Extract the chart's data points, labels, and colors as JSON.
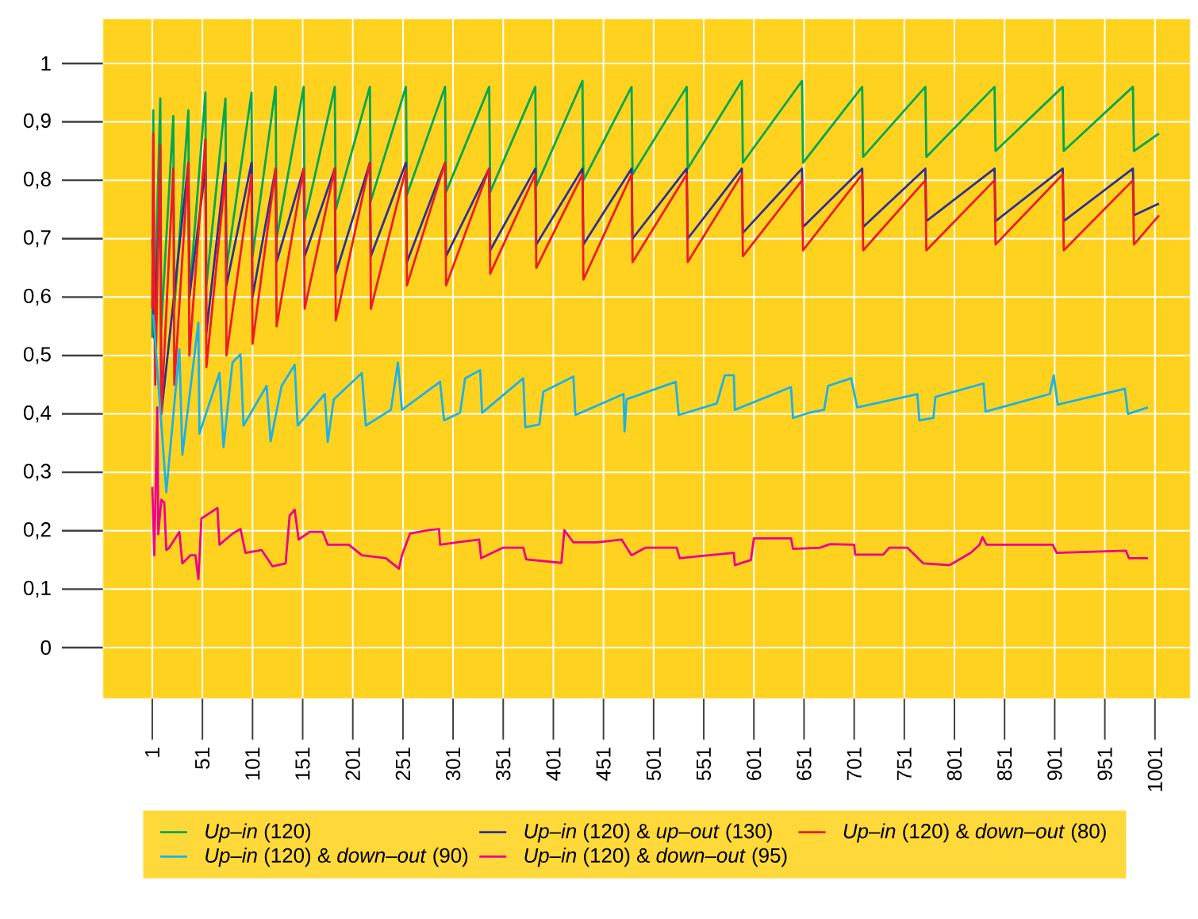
{
  "chart_data": {
    "type": "line",
    "xlim": [
      -48,
      1036
    ],
    "ylim": [
      -0.087,
      1.076
    ],
    "xticks": [
      1,
      51,
      101,
      151,
      201,
      251,
      301,
      351,
      401,
      451,
      501,
      551,
      601,
      651,
      701,
      751,
      801,
      851,
      901,
      951,
      1001
    ],
    "yticks": [
      0,
      {
        "value": 0.1,
        "label": "0,1"
      },
      {
        "value": 0.2,
        "label": "0,2"
      },
      {
        "value": 0.3,
        "label": "0,3"
      },
      {
        "value": 0.4,
        "label": "0,4"
      },
      {
        "value": 0.5,
        "label": "0,5"
      },
      {
        "value": 0.6,
        "label": "0,6"
      },
      {
        "value": 0.7,
        "label": "0,7"
      },
      {
        "value": 0.8,
        "label": "0,8"
      },
      {
        "value": 0.9,
        "label": "0,9"
      },
      1
    ],
    "grid": true,
    "legend": "bottom",
    "marker": "none",
    "line_style": "solid",
    "series": [
      {
        "name": "*Up–in* (120)",
        "color": "#00a850",
        "x": [
          1,
          2,
          3,
          9,
          10,
          22,
          23,
          37,
          38,
          54,
          55,
          74,
          75,
          100,
          101,
          124,
          125,
          152,
          153,
          183,
          184,
          218,
          219,
          254,
          255,
          293,
          294,
          337,
          338,
          383,
          384,
          430,
          431,
          479,
          480,
          534,
          535,
          589,
          590,
          649,
          650,
          709,
          710,
          772,
          773,
          841,
          842,
          909,
          910,
          979,
          980,
          1005
        ],
        "values": [
          0.53,
          0.92,
          0.55,
          0.94,
          0.55,
          0.91,
          0.58,
          0.92,
          0.6,
          0.95,
          0.62,
          0.94,
          0.65,
          0.95,
          0.67,
          0.96,
          0.7,
          0.96,
          0.73,
          0.96,
          0.75,
          0.96,
          0.765,
          0.96,
          0.775,
          0.96,
          0.78,
          0.96,
          0.78,
          0.96,
          0.79,
          0.97,
          0.8,
          0.96,
          0.81,
          0.96,
          0.82,
          0.97,
          0.83,
          0.97,
          0.83,
          0.96,
          0.84,
          0.96,
          0.84,
          0.96,
          0.85,
          0.96,
          0.85,
          0.96,
          0.85,
          0.88
        ]
      },
      {
        "name": "*Up–in* (120) & *up–out* (130)",
        "color": "#2e3192",
        "x": [
          1,
          3,
          9,
          10,
          22,
          23,
          37,
          38,
          54,
          55,
          74,
          75,
          100,
          101,
          124,
          125,
          152,
          153,
          183,
          184,
          218,
          219,
          254,
          255,
          293,
          294,
          337,
          338,
          383,
          384,
          430,
          431,
          479,
          480,
          534,
          535,
          589,
          590,
          649,
          650,
          709,
          710,
          772,
          773,
          841,
          842,
          909,
          910,
          979,
          980,
          1005
        ],
        "values": [
          0.7,
          0.53,
          0.8,
          0.4,
          null,
          null,
          0.83,
          0.6,
          0.82,
          0.54,
          0.83,
          0.62,
          0.83,
          0.6,
          0.82,
          0.66,
          0.82,
          0.67,
          0.82,
          0.64,
          0.83,
          0.67,
          0.83,
          0.66,
          0.83,
          0.67,
          0.82,
          0.68,
          0.82,
          0.69,
          0.82,
          0.69,
          0.82,
          0.7,
          0.82,
          0.7,
          0.82,
          0.71,
          0.82,
          0.72,
          0.82,
          0.72,
          0.82,
          0.73,
          0.82,
          0.73,
          0.82,
          0.73,
          0.82,
          0.74,
          0.76
        ]
      },
      {
        "name": "*Up–in* (120) & *down–out* (80)",
        "color": "#ed1c24",
        "x": [
          1,
          2,
          4,
          9,
          10,
          22,
          23,
          37,
          38,
          54,
          55,
          74,
          75,
          100,
          101,
          124,
          125,
          152,
          153,
          183,
          184,
          218,
          219,
          254,
          255,
          293,
          294,
          337,
          338,
          383,
          384,
          430,
          431,
          479,
          480,
          534,
          535,
          589,
          590,
          649,
          650,
          709,
          710,
          772,
          773,
          841,
          842,
          909,
          910,
          979,
          980,
          1005
        ],
        "values": [
          0.58,
          0.88,
          0.45,
          0.86,
          0.4,
          0.82,
          0.45,
          0.83,
          0.5,
          0.87,
          0.48,
          0.81,
          0.5,
          0.81,
          0.52,
          0.82,
          0.55,
          0.82,
          0.58,
          0.82,
          0.56,
          0.83,
          0.58,
          0.82,
          0.62,
          0.83,
          0.62,
          0.82,
          0.64,
          0.81,
          0.65,
          0.81,
          0.63,
          0.81,
          0.66,
          0.81,
          0.66,
          0.81,
          0.67,
          0.8,
          0.68,
          0.81,
          0.68,
          0.8,
          0.68,
          0.8,
          0.69,
          0.81,
          0.68,
          0.8,
          0.69,
          0.74
        ]
      },
      {
        "name": "*Up–in* (120) & *down–out* (90)",
        "color": "#1ab2e8",
        "x": [
          2,
          15,
          28,
          31,
          47,
          48,
          68,
          72,
          81,
          89,
          92,
          115,
          119,
          130,
          143,
          146,
          173,
          176,
          182,
          210,
          214,
          239,
          246,
          250,
          288,
          292,
          308,
          313,
          328,
          330,
          371,
          373,
          387,
          391,
          421,
          423,
          471,
          472,
          474,
          523,
          526,
          564,
          572,
          581,
          582,
          638,
          640,
          656,
          671,
          675,
          698,
          704,
          764,
          766,
          780,
          782,
          830,
          832,
          896,
          900,
          904,
          971,
          974,
          994
        ],
        "values": [
          0.57,
          0.266,
          0.511,
          0.33,
          0.556,
          0.366,
          0.47,
          0.343,
          0.488,
          0.502,
          0.38,
          0.448,
          0.353,
          0.448,
          0.484,
          0.38,
          0.434,
          0.352,
          0.425,
          0.47,
          0.38,
          0.407,
          0.488,
          0.407,
          0.455,
          0.389,
          0.402,
          0.461,
          0.475,
          0.402,
          0.461,
          0.377,
          0.382,
          0.438,
          0.464,
          0.398,
          0.434,
          0.37,
          0.425,
          0.455,
          0.398,
          0.418,
          0.466,
          0.466,
          0.407,
          0.446,
          0.393,
          0.402,
          0.407,
          0.448,
          0.461,
          0.411,
          0.434,
          0.389,
          0.393,
          0.429,
          0.452,
          0.404,
          0.434,
          0.466,
          0.416,
          0.443,
          0.4,
          0.411
        ]
      },
      {
        "name": "*Up–in* (120) & *down–out* (95)",
        "color": "#ec008c",
        "x": [
          1,
          3,
          6,
          7,
          10,
          13,
          15,
          18,
          28,
          31,
          39,
          44,
          47,
          50,
          66,
          68,
          81,
          89,
          94,
          110,
          121,
          134,
          138,
          143,
          147,
          158,
          171,
          176,
          197,
          210,
          234,
          247,
          250,
          258,
          276,
          287,
          288,
          305,
          327,
          329,
          351,
          371,
          374,
          409,
          412,
          421,
          445,
          469,
          479,
          493,
          524,
          527,
          556,
          581,
          582,
          598,
          601,
          638,
          640,
          667,
          677,
          701,
          702,
          730,
          736,
          754,
          770,
          796,
          817,
          826,
          829,
          833,
          899,
          903,
          972,
          975,
          994
        ],
        "values": [
          0.275,
          0.158,
          0.411,
          0.194,
          0.253,
          0.248,
          0.167,
          0.171,
          0.198,
          0.144,
          0.158,
          0.158,
          0.117,
          0.221,
          0.239,
          0.176,
          0.195,
          0.203,
          0.162,
          0.167,
          0.139,
          0.144,
          0.226,
          0.236,
          0.185,
          0.198,
          0.198,
          0.176,
          0.176,
          0.158,
          0.153,
          0.135,
          0.158,
          0.195,
          0.201,
          0.203,
          0.176,
          0.18,
          0.185,
          0.153,
          0.171,
          0.171,
          0.151,
          0.145,
          0.201,
          0.18,
          0.18,
          0.185,
          0.158,
          0.171,
          0.171,
          0.153,
          0.158,
          0.162,
          0.141,
          0.15,
          0.187,
          0.187,
          0.169,
          0.171,
          0.177,
          0.176,
          0.159,
          0.159,
          0.171,
          0.171,
          0.144,
          0.141,
          0.162,
          0.176,
          0.189,
          0.176,
          0.176,
          0.162,
          0.166,
          0.153,
          0.153
        ]
      }
    ]
  }
}
